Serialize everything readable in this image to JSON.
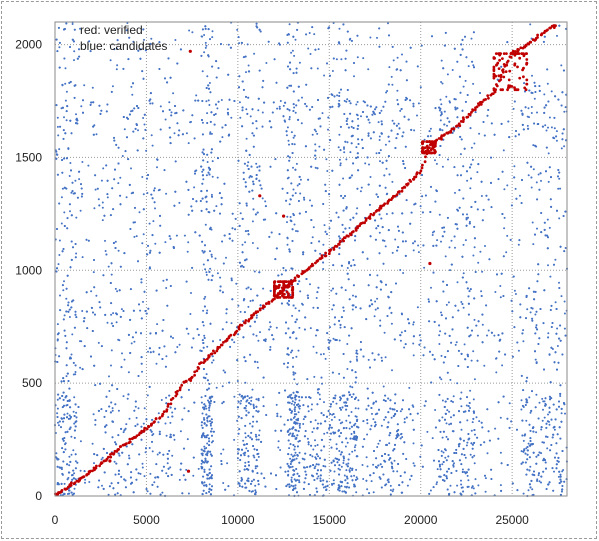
{
  "chart_data": {
    "type": "scatter",
    "title": "",
    "xlabel": "",
    "ylabel": "",
    "xlim": [
      0,
      28000
    ],
    "ylim": [
      0,
      2100
    ],
    "x_ticks": [
      0,
      5000,
      10000,
      15000,
      20000,
      25000
    ],
    "y_ticks": [
      0,
      500,
      1000,
      1500,
      2000
    ],
    "x_tick_labels": [
      "0",
      "5000",
      "10000",
      "15000",
      "20000",
      "25000"
    ],
    "y_tick_labels": [
      "0",
      "500",
      "1000",
      "1500",
      "2000"
    ],
    "grid": true,
    "legend_position": "top-left",
    "legend": [
      {
        "text": "red:  verified",
        "color": "#c00000"
      },
      {
        "text": "blue: candidates",
        "color": "#4472c4"
      }
    ],
    "series": [
      {
        "name": "verified",
        "color": "#c00000",
        "points": [
          [
            0,
            5
          ],
          [
            700,
            40
          ],
          [
            2000,
            110
          ],
          [
            3000,
            175
          ],
          [
            4000,
            240
          ],
          [
            5000,
            300
          ],
          [
            6000,
            370
          ],
          [
            7000,
            500
          ],
          [
            7500,
            520
          ],
          [
            8000,
            590
          ],
          [
            9000,
            660
          ],
          [
            10000,
            740
          ],
          [
            11000,
            810
          ],
          [
            12000,
            880
          ],
          [
            12500,
            920
          ],
          [
            13000,
            950
          ],
          [
            14000,
            1020
          ],
          [
            15000,
            1080
          ],
          [
            16000,
            1150
          ],
          [
            17000,
            1220
          ],
          [
            18000,
            1290
          ],
          [
            19000,
            1360
          ],
          [
            20000,
            1440
          ],
          [
            20500,
            1560
          ],
          [
            21000,
            1580
          ],
          [
            22000,
            1640
          ],
          [
            23000,
            1720
          ],
          [
            24000,
            1790
          ],
          [
            24500,
            1880
          ],
          [
            25000,
            1960
          ],
          [
            26000,
            2010
          ],
          [
            27000,
            2070
          ],
          [
            27500,
            2090
          ],
          [
            7400,
            1970
          ],
          [
            3000,
            155
          ],
          [
            7300,
            110
          ],
          [
            11200,
            1330
          ],
          [
            20500,
            1030
          ],
          [
            12500,
            1240
          ]
        ],
        "clusters": [
          {
            "x": [
              24000,
              25800
            ],
            "y": [
              1800,
              1960
            ]
          },
          {
            "x": [
              12000,
              13000
            ],
            "y": [
              880,
              950
            ]
          },
          {
            "x": [
              20100,
              20800
            ],
            "y": [
              1520,
              1570
            ]
          }
        ]
      },
      {
        "name": "candidates",
        "color": "#4472c4",
        "count": 7000,
        "dense_columns": [
          [
            0,
            1200
          ],
          [
            2500,
            6500
          ],
          [
            8000,
            8600
          ],
          [
            10000,
            11200
          ],
          [
            12700,
            13400
          ],
          [
            13600,
            15600
          ],
          [
            15500,
            16600
          ],
          [
            17000,
            19300
          ],
          [
            21000,
            23000
          ],
          [
            25500,
            28000
          ]
        ],
        "dense_bands": [
          [
            0,
            420
          ],
          [
            600,
            930
          ],
          [
            1080,
            1500
          ],
          [
            1580,
            1760
          ]
        ]
      }
    ]
  }
}
